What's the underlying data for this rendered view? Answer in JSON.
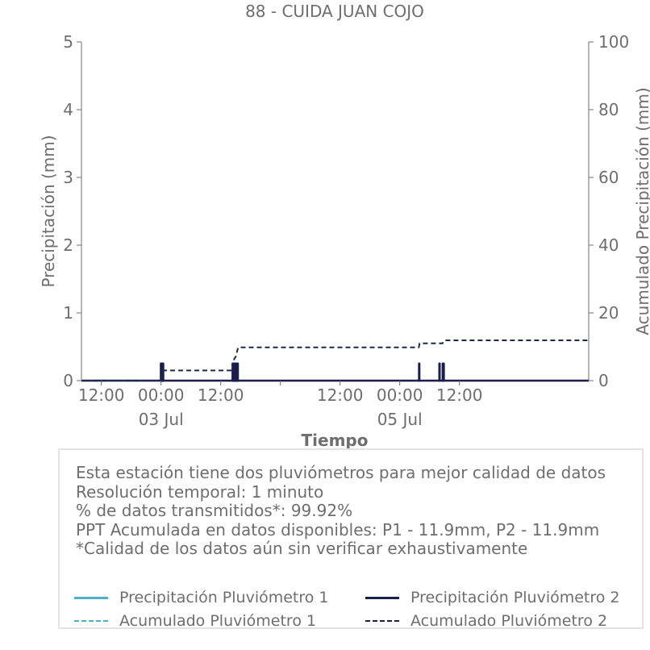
{
  "chart_data": {
    "type": "bar",
    "title": "88 - CUIDA JUAN COJO",
    "xlabel": "Tiempo",
    "ylabel_left": "Precipitación (mm)",
    "ylabel_right": "Acumulado Precipitación (mm)",
    "ylim_left": [
      0,
      5
    ],
    "ylim_right": [
      0,
      100
    ],
    "yticks_left": [
      "0",
      "1",
      "2",
      "3",
      "4",
      "5"
    ],
    "yticks_right": [
      "0",
      "20",
      "40",
      "60",
      "80",
      "100"
    ],
    "x_range": [
      "2024-07-02T08:00",
      "2024-07-06T14:00"
    ],
    "xticks": [
      {
        "t": "2024-07-02T12:00",
        "label": "12:00",
        "sublabel": ""
      },
      {
        "t": "2024-07-03T00:00",
        "label": "00:00",
        "sublabel": "03 Jul"
      },
      {
        "t": "2024-07-03T12:00",
        "label": "12:00",
        "sublabel": ""
      },
      {
        "t": "2024-07-04T00:00",
        "label": "",
        "sublabel": ""
      },
      {
        "t": "2024-07-04T12:00",
        "label": "12:00",
        "sublabel": ""
      },
      {
        "t": "2024-07-05T00:00",
        "label": "00:00",
        "sublabel": "05 Jul"
      },
      {
        "t": "2024-07-05T12:00",
        "label": "12:00",
        "sublabel": ""
      }
    ],
    "series": [
      {
        "name": "Precipitación Pluviómetro 1",
        "style": "solid",
        "color": "#4cb3c7",
        "axis": "left",
        "values": []
      },
      {
        "name": "Precipitación Pluviómetro 2",
        "style": "solid",
        "color": "#1b1f4a",
        "axis": "left",
        "values": [
          {
            "t": "2024-07-03T00:00",
            "v": 0.25
          },
          {
            "t": "2024-07-03T00:05",
            "v": 0.25
          },
          {
            "t": "2024-07-03T00:10",
            "v": 0.25
          },
          {
            "t": "2024-07-03T00:15",
            "v": 0.25
          },
          {
            "t": "2024-07-03T00:20",
            "v": 0.25
          },
          {
            "t": "2024-07-03T00:25",
            "v": 0.25
          },
          {
            "t": "2024-07-03T14:25",
            "v": 0.25
          },
          {
            "t": "2024-07-03T14:30",
            "v": 0.25
          },
          {
            "t": "2024-07-03T14:40",
            "v": 0.25
          },
          {
            "t": "2024-07-03T14:55",
            "v": 0.25
          },
          {
            "t": "2024-07-03T15:10",
            "v": 0.25
          },
          {
            "t": "2024-07-03T15:15",
            "v": 0.25
          },
          {
            "t": "2024-07-03T15:20",
            "v": 0.25
          },
          {
            "t": "2024-07-03T15:25",
            "v": 0.25
          },
          {
            "t": "2024-07-05T03:55",
            "v": 0.25
          },
          {
            "t": "2024-07-05T08:00",
            "v": 0.25
          },
          {
            "t": "2024-07-05T08:40",
            "v": 0.25
          },
          {
            "t": "2024-07-05T08:45",
            "v": 0.25
          },
          {
            "t": "2024-07-05T08:50",
            "v": 0.25
          }
        ]
      },
      {
        "name": "Acumulado Pluviómetro 1",
        "style": "dashed",
        "color": "#4cb3c7",
        "axis": "right",
        "values": []
      },
      {
        "name": "Acumulado Pluviómetro 2",
        "style": "dashed",
        "color": "#1b2a4a",
        "axis": "right",
        "values": [
          {
            "t": "2024-07-02T08:00",
            "v": 0
          },
          {
            "t": "2024-07-02T23:55",
            "v": 0
          },
          {
            "t": "2024-07-03T00:25",
            "v": 3.0
          },
          {
            "t": "2024-07-03T14:20",
            "v": 3.0
          },
          {
            "t": "2024-07-03T14:45",
            "v": 6.5
          },
          {
            "t": "2024-07-03T15:00",
            "v": 7.0
          },
          {
            "t": "2024-07-03T15:30",
            "v": 9.8
          },
          {
            "t": "2024-07-05T03:50",
            "v": 9.8
          },
          {
            "t": "2024-07-05T04:00",
            "v": 11.0
          },
          {
            "t": "2024-07-05T08:35",
            "v": 11.0
          },
          {
            "t": "2024-07-05T09:00",
            "v": 11.9
          },
          {
            "t": "2024-07-06T14:00",
            "v": 11.9
          }
        ]
      }
    ],
    "grid": false,
    "legend_position": "bottom"
  },
  "info": {
    "lines": [
      "Esta estación tiene dos pluviómetros para mejor calidad de datos",
      "Resolución temporal: 1 minuto",
      "% de datos transmitidos*: 99.92%",
      "PPT Acumulada en datos disponibles: P1 - 11.9mm, P2 - 11.9mm",
      "*Calidad de los datos aún sin verificar exhaustivamente"
    ]
  },
  "legend": {
    "items": [
      {
        "label": "Precipitación Pluviómetro 1",
        "color": "#4cb3c7",
        "style": "solid"
      },
      {
        "label": "Precipitación Pluviómetro 2",
        "color": "#1b1f4a",
        "style": "solid"
      },
      {
        "label": "Acumulado Pluviómetro 1",
        "color": "#4cb3c7",
        "style": "dashed"
      },
      {
        "label": "Acumulado Pluviómetro 2",
        "color": "#1b1f4a",
        "style": "dashed"
      }
    ]
  }
}
